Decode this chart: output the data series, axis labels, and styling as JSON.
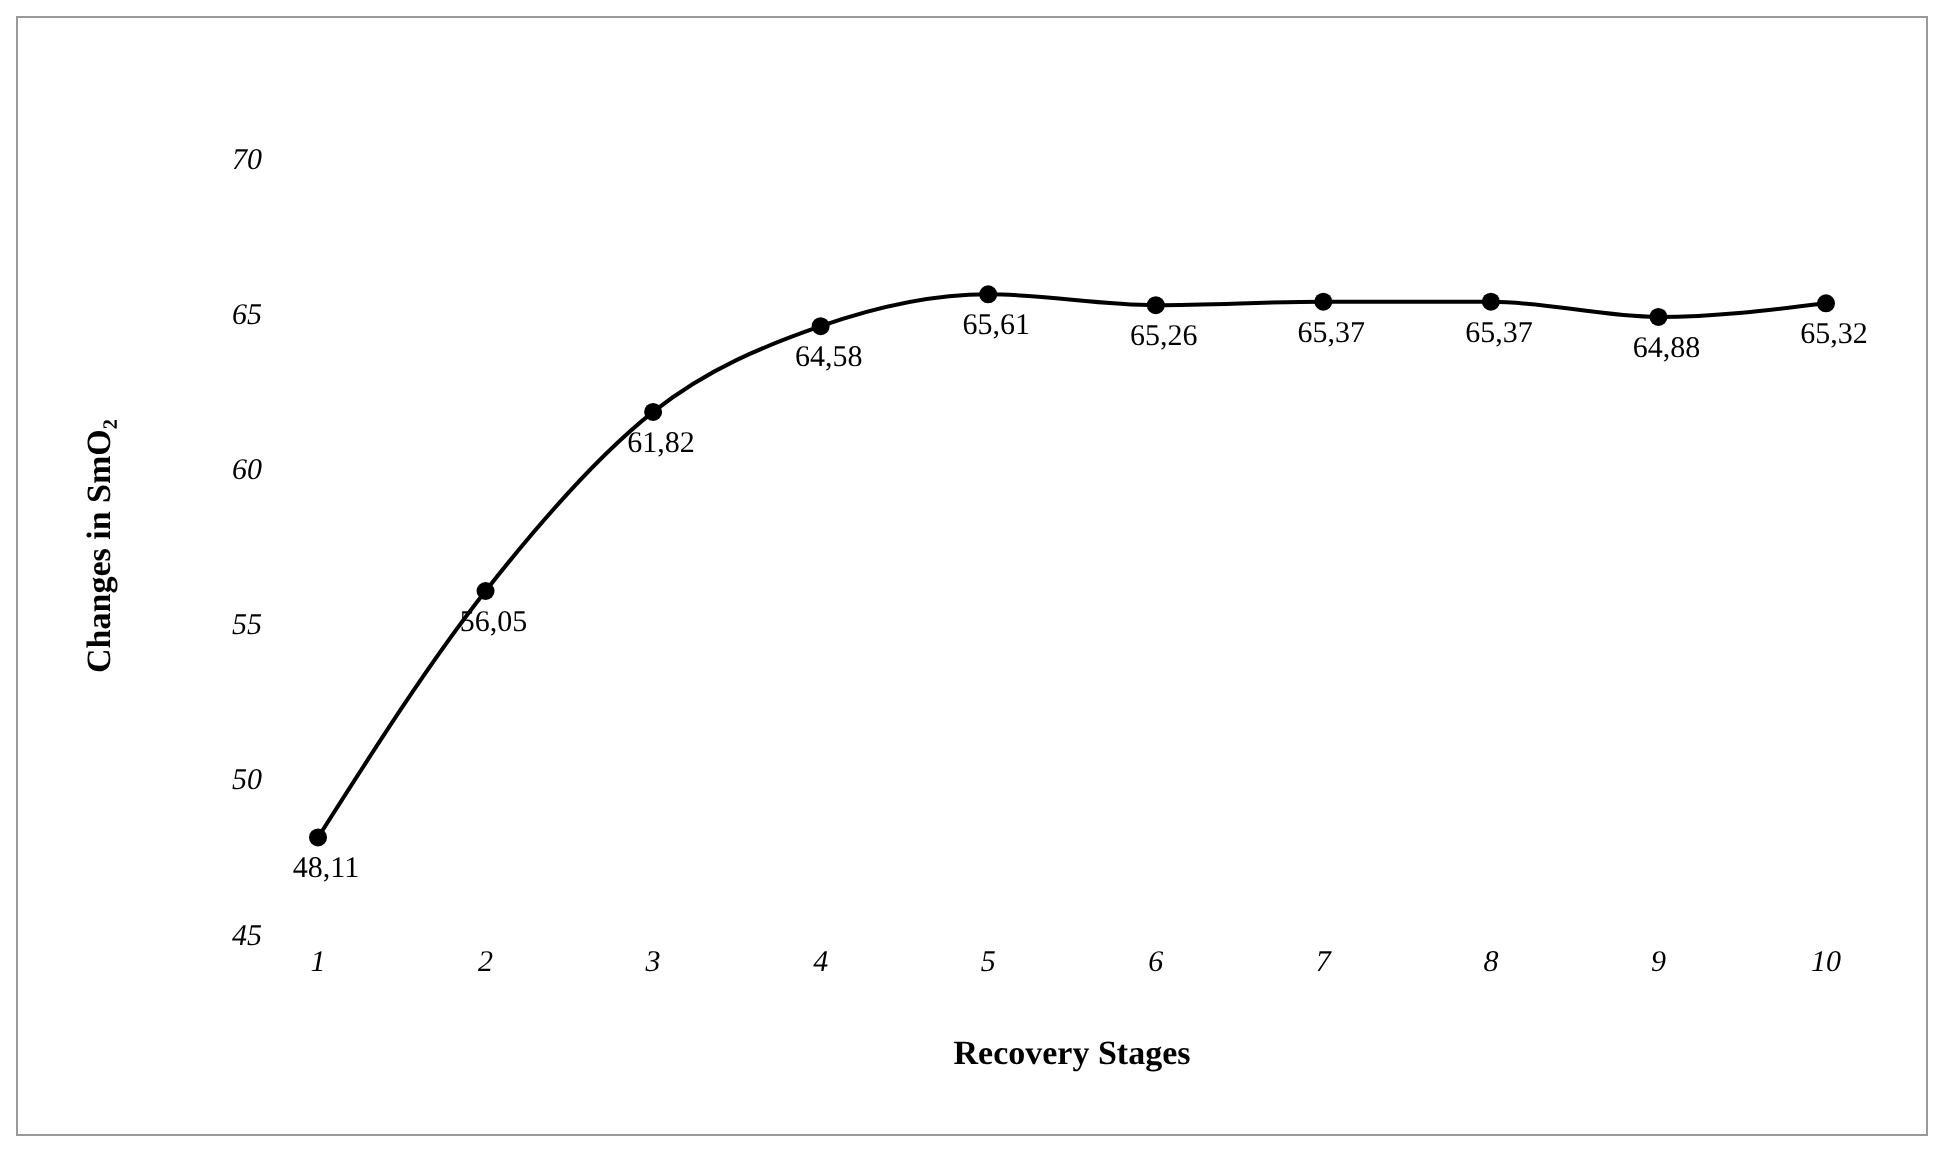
{
  "chart_data": {
    "type": "line",
    "xlabel": "Recovery Stages",
    "ylabel": "Changes in SmO₂",
    "categories": [
      "1",
      "2",
      "3",
      "4",
      "5",
      "6",
      "7",
      "8",
      "9",
      "10"
    ],
    "values": [
      48.11,
      56.05,
      61.82,
      64.58,
      65.61,
      65.26,
      65.37,
      65.37,
      64.88,
      65.32
    ],
    "value_labels": [
      "48,11",
      "56,05",
      "61,82",
      "64,58",
      "65,61",
      "65,26",
      "65,37",
      "65,37",
      "64,88",
      "65,32"
    ],
    "color": "#000000",
    "marker": "circle",
    "ylim": [
      45,
      70
    ],
    "yticks": [
      45,
      50,
      55,
      60,
      65,
      70
    ]
  }
}
